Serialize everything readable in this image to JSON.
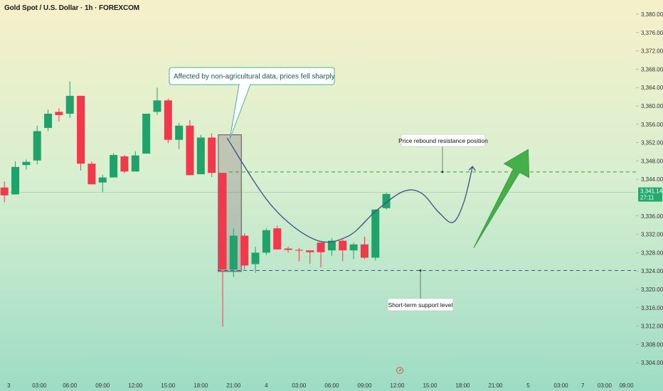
{
  "title": "Gold Spot / U.S. Dollar · 1h · FOREXCOM",
  "chart_data": {
    "type": "candlestick",
    "symbol": "Gold Spot / U.S. Dollar",
    "interval": "1h",
    "source": "FOREXCOM",
    "colors": {
      "up": "#20a36a",
      "down": "#f2384a",
      "support": "#3a56a0",
      "resistance": "#2f9e3f",
      "arrow": "#45b04a",
      "callout": "#3fb7a3",
      "curve": "#3b4f86",
      "price_tag": "#22ab6c"
    },
    "ylim": [
      3302,
      3382
    ],
    "yticks": [
      3380,
      3376,
      3372,
      3368,
      3364,
      3360,
      3356,
      3352,
      3348,
      3344,
      3336,
      3332,
      3328,
      3324,
      3320,
      3316,
      3312,
      3308,
      3304
    ],
    "ytick_labels": [
      "3,380.00",
      "3,376.00",
      "3,372.00",
      "3,368.00",
      "3,364.00",
      "3,360.00",
      "3,356.00",
      "3,352.00",
      "3,348.00",
      "3,344.00",
      "3,336.00",
      "3,332.00",
      "3,328.00",
      "3,324.00",
      "3,320.00",
      "3,316.00",
      "3,312.00",
      "3,308.00",
      "3,304.00"
    ],
    "xticks": [
      {
        "i": 0.4,
        "label": "3"
      },
      {
        "i": 3.2,
        "label": "03:00"
      },
      {
        "i": 6,
        "label": "06:00"
      },
      {
        "i": 9,
        "label": "09:00"
      },
      {
        "i": 12,
        "label": "12:00"
      },
      {
        "i": 15,
        "label": "15:00"
      },
      {
        "i": 18,
        "label": "18:00"
      },
      {
        "i": 21,
        "label": "21:00"
      },
      {
        "i": 24,
        "label": "4"
      },
      {
        "i": 27,
        "label": "03:00"
      },
      {
        "i": 30,
        "label": "06:00"
      },
      {
        "i": 33,
        "label": "09:00"
      },
      {
        "i": 36,
        "label": "12:00"
      },
      {
        "i": 39,
        "label": "15:00"
      },
      {
        "i": 42,
        "label": "18:00"
      },
      {
        "i": 45,
        "label": "21:00"
      },
      {
        "i": 48,
        "label": "5"
      },
      {
        "i": 51,
        "label": "03:00"
      },
      {
        "i": 53,
        "label": "7"
      },
      {
        "i": 55,
        "label": "03:00"
      },
      {
        "i": 57,
        "label": "09:00"
      }
    ],
    "candles": [
      {
        "o": 3342.2,
        "h": 3343.5,
        "l": 3339.0,
        "c": 3340.5
      },
      {
        "o": 3340.7,
        "h": 3347.9,
        "l": 3340.7,
        "c": 3346.7
      },
      {
        "o": 3347.1,
        "h": 3348.3,
        "l": 3346.1,
        "c": 3347.8
      },
      {
        "o": 3348.1,
        "h": 3355.7,
        "l": 3347.3,
        "c": 3354.5
      },
      {
        "o": 3355.2,
        "h": 3359.2,
        "l": 3354.5,
        "c": 3358.3
      },
      {
        "o": 3358.7,
        "h": 3359.5,
        "l": 3356.6,
        "c": 3358.0
      },
      {
        "o": 3358.3,
        "h": 3365.3,
        "l": 3357.4,
        "c": 3362.2
      },
      {
        "o": 3362.2,
        "h": 3362.2,
        "l": 3345.9,
        "c": 3347.4
      },
      {
        "o": 3347.4,
        "h": 3347.9,
        "l": 3342.9,
        "c": 3342.9
      },
      {
        "o": 3343.3,
        "h": 3345.0,
        "l": 3341.2,
        "c": 3344.4
      },
      {
        "o": 3344.4,
        "h": 3349.7,
        "l": 3344.4,
        "c": 3349.3
      },
      {
        "o": 3349.0,
        "h": 3349.3,
        "l": 3345.3,
        "c": 3345.7
      },
      {
        "o": 3345.7,
        "h": 3350.1,
        "l": 3345.7,
        "c": 3349.2
      },
      {
        "o": 3349.6,
        "h": 3358.3,
        "l": 3349.6,
        "c": 3358.3
      },
      {
        "o": 3358.7,
        "h": 3364.0,
        "l": 3358.0,
        "c": 3361.2
      },
      {
        "o": 3361.2,
        "h": 3361.6,
        "l": 3351.9,
        "c": 3352.6
      },
      {
        "o": 3352.6,
        "h": 3356.3,
        "l": 3350.6,
        "c": 3355.7
      },
      {
        "o": 3355.7,
        "h": 3356.9,
        "l": 3344.9,
        "c": 3344.9
      },
      {
        "o": 3345.1,
        "h": 3353.7,
        "l": 3345.1,
        "c": 3353.1
      },
      {
        "o": 3353.1,
        "h": 3354.0,
        "l": 3344.5,
        "c": 3345.4
      },
      {
        "o": 3345.4,
        "h": 3345.4,
        "l": 3311.9,
        "c": 3324.3
      },
      {
        "o": 3324.3,
        "h": 3333.3,
        "l": 3322.7,
        "c": 3331.7
      },
      {
        "o": 3331.7,
        "h": 3332.2,
        "l": 3324.3,
        "c": 3325.2
      },
      {
        "o": 3325.5,
        "h": 3329.3,
        "l": 3323.6,
        "c": 3328.0
      },
      {
        "o": 3328.0,
        "h": 3333.3,
        "l": 3327.5,
        "c": 3332.9
      },
      {
        "o": 3333.3,
        "h": 3333.9,
        "l": 3328.7,
        "c": 3328.7
      },
      {
        "o": 3328.9,
        "h": 3329.3,
        "l": 3328.0,
        "c": 3328.6
      },
      {
        "o": 3328.6,
        "h": 3329.0,
        "l": 3326.1,
        "c": 3328.5
      },
      {
        "o": 3328.5,
        "h": 3328.5,
        "l": 3325.6,
        "c": 3328.1
      },
      {
        "o": 3330.2,
        "h": 3330.2,
        "l": 3324.8,
        "c": 3328.1
      },
      {
        "o": 3328.5,
        "h": 3331.1,
        "l": 3327.3,
        "c": 3330.6
      },
      {
        "o": 3330.6,
        "h": 3330.9,
        "l": 3326.1,
        "c": 3328.5
      },
      {
        "o": 3328.5,
        "h": 3330.2,
        "l": 3326.6,
        "c": 3329.8
      },
      {
        "o": 3329.8,
        "h": 3331.5,
        "l": 3326.6,
        "c": 3326.9
      },
      {
        "o": 3326.9,
        "h": 3337.4,
        "l": 3326.3,
        "c": 3337.4
      },
      {
        "o": 3337.7,
        "h": 3341.1,
        "l": 3337.4,
        "c": 3340.8
      }
    ],
    "current_price": {
      "value": 3341.14,
      "label": "3,341.14",
      "countdown": "27:11"
    },
    "levels": [
      {
        "name": "resistance",
        "value": 3345.6,
        "label": "Price rebound resistance position"
      },
      {
        "name": "support",
        "value": 3324.1,
        "label": "Short-term support level"
      }
    ],
    "annotations": {
      "callout": "Affected by non-agricultural data, prices fell sharply",
      "highlight_box": {
        "from_index": 19.6,
        "to_index": 20.8,
        "top": 3353.7,
        "bottom": 3323.9
      },
      "projection_path": [
        {
          "i": 20.4,
          "p": 3353.0
        },
        {
          "i": 24.5,
          "p": 3338.2
        },
        {
          "i": 28.5,
          "p": 3330.8
        },
        {
          "i": 31.5,
          "p": 3331.6
        },
        {
          "i": 34.0,
          "p": 3337.0
        },
        {
          "i": 36.5,
          "p": 3341.3
        },
        {
          "i": 38.2,
          "p": 3341.0
        },
        {
          "i": 39.8,
          "p": 3336.8
        },
        {
          "i": 41.1,
          "p": 3334.6
        },
        {
          "i": 42.1,
          "p": 3339.0
        },
        {
          "i": 42.9,
          "p": 3346.8
        }
      ],
      "big_arrow": {
        "from": {
          "i": 43.0,
          "p": 3329.0
        },
        "to": {
          "i": 48.0,
          "p": 3350.5
        }
      }
    }
  }
}
